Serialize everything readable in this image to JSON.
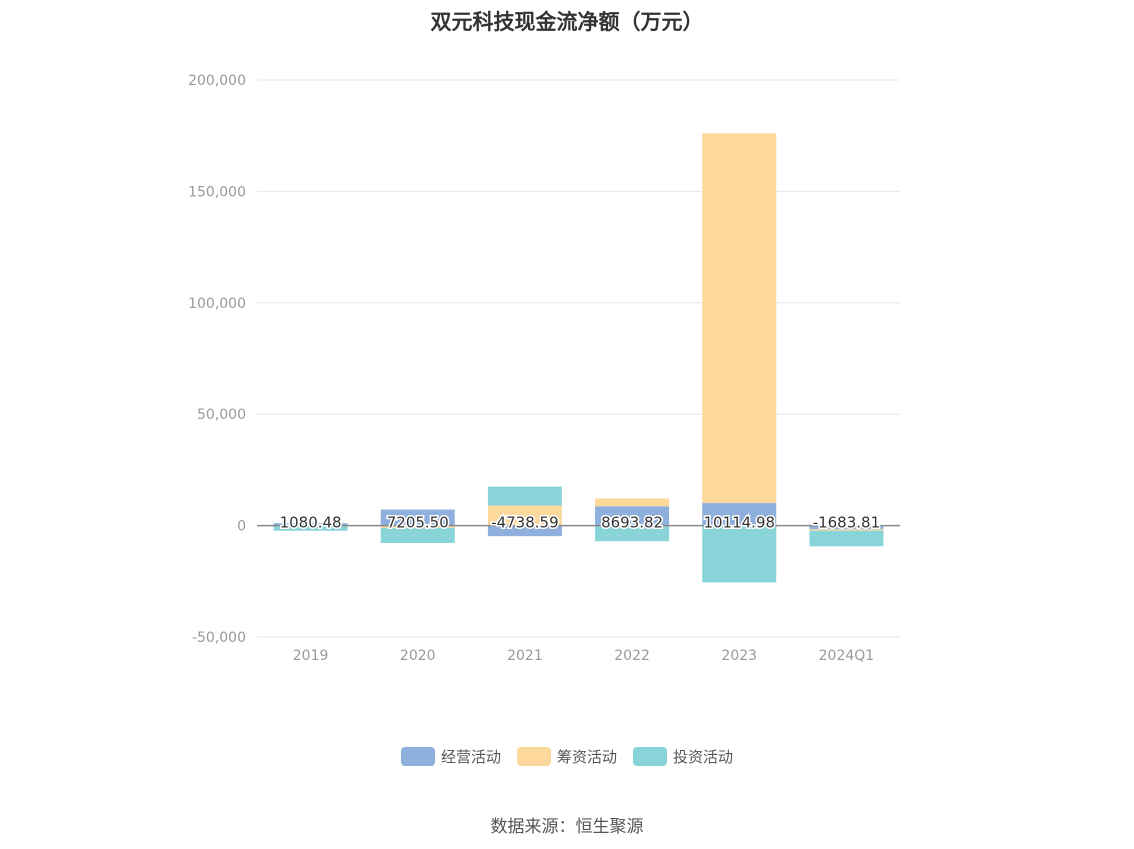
{
  "title": "双元科技现金流净额（万元）",
  "source": "数据来源：恒生聚源",
  "colors": {
    "operating": "#8fb0dd",
    "financing": "#fdd89c",
    "investing": "#88d4d9",
    "grid": "#e6e6ee",
    "axis_text": "#999999",
    "zero_line": "#888888"
  },
  "chart_data": {
    "type": "bar",
    "stacked": true,
    "categories": [
      "2019",
      "2020",
      "2021",
      "2022",
      "2023",
      "2024Q1"
    ],
    "series": [
      {
        "name": "经营活动",
        "values": [
          1080.48,
          7205.5,
          -4738.59,
          8693.82,
          10114.98,
          -1683.81
        ]
      },
      {
        "name": "筹资活动",
        "values": [
          -300,
          -1000,
          9000,
          3500,
          166000,
          -600
        ]
      },
      {
        "name": "投资活动",
        "values": [
          -2000,
          -6800,
          8500,
          -7000,
          -25500,
          -7000
        ]
      }
    ],
    "data_labels": [
      "1080.48",
      "7205.50",
      "-4738.59",
      "8693.82",
      "10114.98",
      "-1683.81"
    ],
    "y_ticks": [
      "200,000",
      "150,000",
      "100,000",
      "50,000",
      "0",
      "-50,000"
    ],
    "y_tick_values": [
      200000,
      150000,
      100000,
      50000,
      0,
      -50000
    ],
    "ylim": [
      -50000,
      200000
    ],
    "xlabel": "",
    "ylabel": "",
    "grid": true,
    "legend_position": "bottom"
  }
}
